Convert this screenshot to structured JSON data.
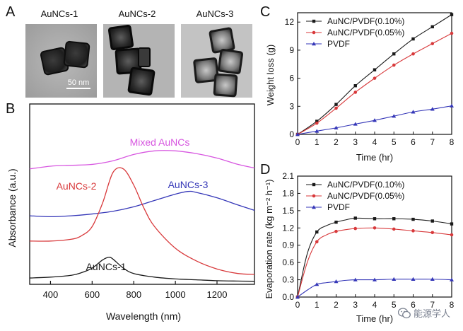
{
  "panels": {
    "a": "A",
    "b": "B",
    "c": "C",
    "d": "D"
  },
  "tem": {
    "titles": [
      "AuNCs-1",
      "AuNCs-2",
      "AuNCs-3"
    ],
    "scale_bar": "50 nm"
  },
  "watermark": {
    "text": "能源学人",
    "icon": "wechat-icon"
  },
  "colors": {
    "black": "#1a1a1a",
    "red": "#d8393b",
    "blue": "#3537b8",
    "magenta": "#d756e0"
  },
  "chart_data": [
    {
      "id": "B",
      "type": "line",
      "xlabel": "Wavelength (nm)",
      "ylabel": "Absorbance (a.u.)",
      "xlim": [
        300,
        1380
      ],
      "xticks": [
        400,
        600,
        800,
        1000,
        1200
      ],
      "ylim": [
        0,
        1
      ],
      "grid": false,
      "series": [
        {
          "name": "Mixed AuNCs",
          "color": "#d756e0",
          "x": [
            300,
            400,
            500,
            600,
            700,
            800,
            900,
            1000,
            1100,
            1200,
            1300,
            1380
          ],
          "y": [
            0.64,
            0.655,
            0.66,
            0.665,
            0.685,
            0.72,
            0.74,
            0.74,
            0.725,
            0.7,
            0.665,
            0.645
          ]
        },
        {
          "name": "AuNCs-3",
          "color": "#3537b8",
          "x": [
            300,
            400,
            500,
            600,
            700,
            800,
            900,
            1000,
            1060,
            1100,
            1200,
            1300,
            1380
          ],
          "y": [
            0.38,
            0.375,
            0.38,
            0.39,
            0.405,
            0.43,
            0.465,
            0.5,
            0.515,
            0.51,
            0.48,
            0.44,
            0.41
          ]
        },
        {
          "name": "AuNCs-2",
          "color": "#d8393b",
          "x": [
            300,
            400,
            500,
            550,
            600,
            650,
            700,
            750,
            800,
            850,
            900,
            1000,
            1100,
            1200,
            1300,
            1380
          ],
          "y": [
            0.24,
            0.24,
            0.25,
            0.27,
            0.32,
            0.45,
            0.62,
            0.64,
            0.55,
            0.42,
            0.32,
            0.2,
            0.13,
            0.085,
            0.06,
            0.055
          ]
        },
        {
          "name": "AuNCs-1",
          "color": "#1a1a1a",
          "x": [
            300,
            400,
            500,
            550,
            600,
            650,
            680,
            700,
            750,
            800,
            900,
            1000,
            1100,
            1200,
            1300,
            1380
          ],
          "y": [
            0.035,
            0.04,
            0.05,
            0.065,
            0.09,
            0.135,
            0.15,
            0.14,
            0.09,
            0.06,
            0.04,
            0.03,
            0.025,
            0.02,
            0.018,
            0.017
          ]
        }
      ]
    },
    {
      "id": "C",
      "type": "line",
      "xlabel": "Time (hr)",
      "ylabel": "Weight loss (g)",
      "xlim": [
        0,
        8
      ],
      "ylim": [
        0,
        13
      ],
      "xticks": [
        0,
        1,
        2,
        3,
        4,
        5,
        6,
        7,
        8
      ],
      "yticks": [
        0,
        3,
        6,
        9,
        12
      ],
      "legend": "top-left",
      "grid": false,
      "series": [
        {
          "name": "AuNC/PVDF(0.10%)",
          "color": "#1a1a1a",
          "marker": "square",
          "x": [
            0,
            1,
            2,
            3,
            4,
            5,
            6,
            7,
            8
          ],
          "y": [
            0,
            1.4,
            3.2,
            5.2,
            6.9,
            8.6,
            10.2,
            11.5,
            12.8
          ]
        },
        {
          "name": "AuNC/PVDF(0.05%)",
          "color": "#d8393b",
          "marker": "circle",
          "x": [
            0,
            1,
            2,
            3,
            4,
            5,
            6,
            7,
            8
          ],
          "y": [
            0,
            1.2,
            2.8,
            4.5,
            6.0,
            7.4,
            8.6,
            9.7,
            10.8
          ]
        },
        {
          "name": "PVDF",
          "color": "#3537b8",
          "marker": "triangle",
          "x": [
            0,
            1,
            2,
            3,
            4,
            5,
            6,
            7,
            8
          ],
          "y": [
            0,
            0.35,
            0.7,
            1.1,
            1.5,
            1.95,
            2.4,
            2.7,
            3.05
          ]
        }
      ]
    },
    {
      "id": "D",
      "type": "line",
      "xlabel": "Time (hr)",
      "ylabel": "Evaporation rate (kg m⁻² h⁻¹)",
      "xlim": [
        0,
        8
      ],
      "ylim": [
        0,
        2.1
      ],
      "xticks": [
        0,
        1,
        2,
        3,
        4,
        5,
        6,
        7,
        8
      ],
      "yticks": [
        "0.0",
        "0.3",
        "0.6",
        "0.9",
        "1.2",
        "1.5",
        "1.8",
        "2.1"
      ],
      "legend": "top-left",
      "grid": false,
      "series": [
        {
          "name": "AuNC/PVDF(0.10%)",
          "color": "#1a1a1a",
          "marker": "square",
          "x": [
            0,
            0.5,
            1,
            1.5,
            2,
            2.5,
            3,
            4,
            5,
            6,
            7,
            8
          ],
          "y": [
            0,
            0.75,
            1.13,
            1.24,
            1.3,
            1.34,
            1.37,
            1.36,
            1.36,
            1.35,
            1.32,
            1.27
          ]
        },
        {
          "name": "AuNC/PVDF(0.05%)",
          "color": "#d8393b",
          "marker": "circle",
          "x": [
            0,
            0.5,
            1,
            1.5,
            2,
            2.5,
            3,
            4,
            5,
            6,
            7,
            8
          ],
          "y": [
            0,
            0.6,
            0.96,
            1.08,
            1.14,
            1.17,
            1.19,
            1.2,
            1.18,
            1.15,
            1.12,
            1.08
          ]
        },
        {
          "name": "PVDF",
          "color": "#3537b8",
          "marker": "triangle",
          "x": [
            0,
            0.5,
            1,
            1.5,
            2,
            2.5,
            3,
            4,
            5,
            6,
            7,
            8
          ],
          "y": [
            0,
            0.12,
            0.22,
            0.25,
            0.27,
            0.29,
            0.3,
            0.3,
            0.31,
            0.31,
            0.31,
            0.3
          ]
        }
      ]
    }
  ]
}
